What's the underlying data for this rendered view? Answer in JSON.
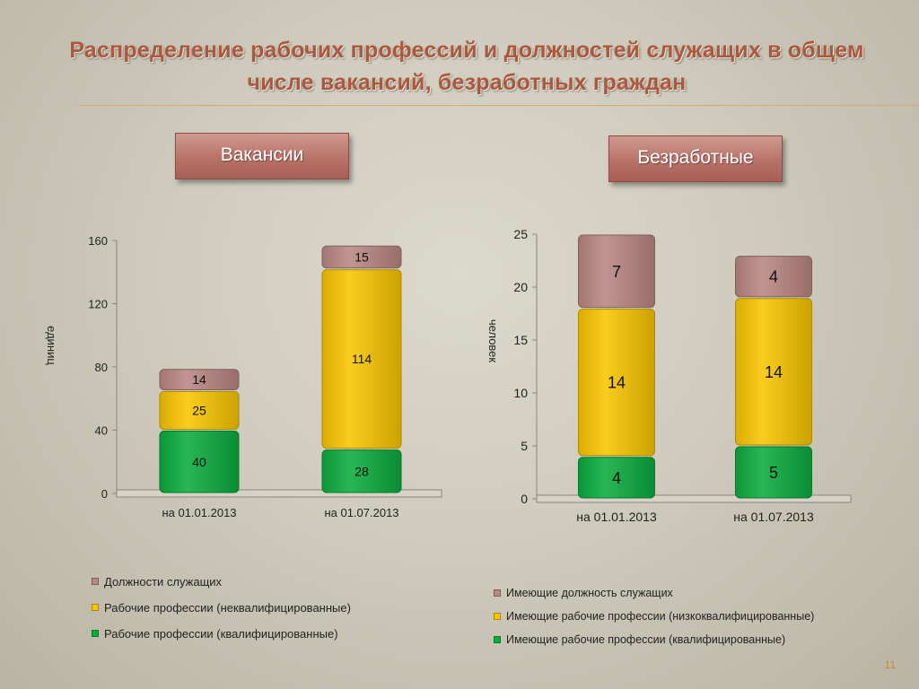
{
  "title": "Распределение рабочих профессий и должностей служащих в общем числе вакансий, безработных граждан",
  "page_number": "11",
  "colors": {
    "employees": "#b98682",
    "unskilled": "#f8c500",
    "skilled": "#0cac3e"
  },
  "charts": [
    {
      "header": "Вакансии"
    },
    {
      "header": "Безработные"
    }
  ],
  "chart_data": [
    {
      "type": "bar",
      "stacked": true,
      "ylabel": "единиц",
      "ylim": [
        0,
        160
      ],
      "yticks": [
        0,
        40,
        80,
        120,
        160
      ],
      "categories": [
        "на 01.01.2013",
        "на 01.07.2013"
      ],
      "series": [
        {
          "name": "Рабочие профессии (квалифицированные)",
          "values": [
            40,
            28
          ],
          "color": "#0cac3e"
        },
        {
          "name": "Рабочие профессии (неквалифицированные)",
          "values": [
            25,
            114
          ],
          "color": "#f8c500"
        },
        {
          "name": "Должности служащих",
          "values": [
            14,
            15
          ],
          "color": "#b98682"
        }
      ],
      "legend": [
        "Должности служащих",
        "Рабочие профессии (неквалифицированные)",
        "Рабочие профессии (квалифицированные)"
      ],
      "legend_position": "bottom",
      "grid": false
    },
    {
      "type": "bar",
      "stacked": true,
      "ylabel": "человек",
      "ylim": [
        0,
        25
      ],
      "yticks": [
        0,
        5,
        10,
        15,
        20,
        25
      ],
      "categories": [
        "на 01.01.2013",
        "на 01.07.2013"
      ],
      "series": [
        {
          "name": "Имеющие рабочие профессии (квалифицированные)",
          "values": [
            4,
            5
          ],
          "color": "#0cac3e"
        },
        {
          "name": "Имеющие рабочие профессии (низкоквалифицированные)",
          "values": [
            14,
            14
          ],
          "color": "#f8c500"
        },
        {
          "name": "Имеющие должность служащих",
          "values": [
            7,
            4
          ],
          "color": "#b98682"
        }
      ],
      "legend": [
        "Имеющие должность служащих",
        "Имеющие рабочие профессии (низкоквалифицированные)",
        "Имеющие рабочие профессии (квалифицированные)"
      ],
      "legend_position": "bottom",
      "grid": false
    }
  ]
}
